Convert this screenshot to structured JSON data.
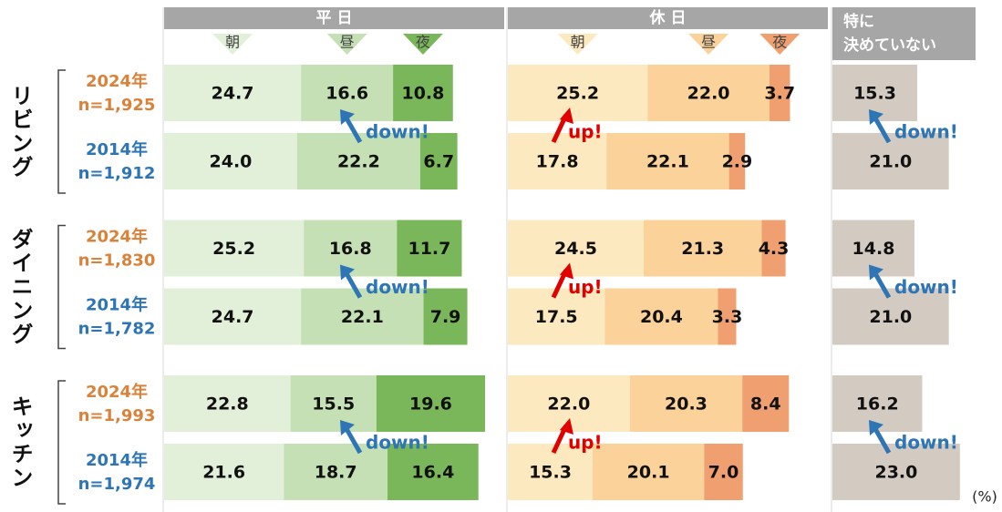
{
  "chart_data": {
    "type": "stacked_bar_panels",
    "unit": "(%)",
    "rooms": [
      {
        "name": "リビング",
        "rows": [
          {
            "year": "2024年",
            "n": "n=1,925"
          },
          {
            "year": "2014年",
            "n": "n=1,912"
          }
        ]
      },
      {
        "name": "ダイニング",
        "rows": [
          {
            "year": "2024年",
            "n": "n=1,830"
          },
          {
            "year": "2014年",
            "n": "n=1,782"
          }
        ]
      },
      {
        "name": "キッチン",
        "rows": [
          {
            "year": "2024年",
            "n": "n=1,993"
          },
          {
            "year": "2014年",
            "n": "n=1,974"
          }
        ]
      }
    ],
    "year_colors": [
      "#d9823b",
      "#2e75b6"
    ],
    "panels": [
      {
        "title_lines": [
          "平 日"
        ],
        "annotations": [
          "down!",
          "down!",
          "down!"
        ],
        "annotation_color": "#2e75b6",
        "series": [
          {
            "name": "朝",
            "color": "#e2efd9",
            "values": [
              24.7,
              24.0,
              25.2,
              24.7,
              22.8,
              21.6
            ],
            "value_labels": [
              "24.7",
              "24.0",
              "25.2",
              "24.7",
              "22.8",
              "21.6"
            ]
          },
          {
            "name": "昼",
            "color": "#c5e0b4",
            "values": [
              16.6,
              22.2,
              16.8,
              22.1,
              15.5,
              18.7
            ],
            "value_labels": [
              "16.6",
              "22.2",
              "16.8",
              "22.1",
              "15.5",
              "18.7"
            ]
          },
          {
            "name": "夜",
            "color": "#7ab65a",
            "values": [
              10.8,
              6.7,
              11.7,
              7.9,
              19.6,
              16.4
            ],
            "value_labels": [
              "10.8",
              "6.7",
              "11.7",
              "7.9",
              "19.6",
              "16.4"
            ]
          }
        ]
      },
      {
        "title_lines": [
          "休 日"
        ],
        "annotations": [
          "up!",
          "up!",
          "up!"
        ],
        "annotation_color": "#e00000",
        "series": [
          {
            "name": "朝",
            "color": "#fde9c0",
            "values": [
              25.2,
              17.8,
              24.5,
              17.5,
              22.0,
              15.3
            ],
            "value_labels": [
              "25.2",
              "17.8",
              "24.5",
              "17.5",
              "22.0",
              "15.3"
            ]
          },
          {
            "name": "昼",
            "color": "#fbd39a",
            "values": [
              22.0,
              22.1,
              21.3,
              20.4,
              20.3,
              20.1
            ],
            "value_labels": [
              "22.0",
              "22.1",
              "21.3",
              "20.4",
              "20.3",
              "20.1"
            ]
          },
          {
            "name": "夜",
            "color": "#f0a070",
            "values": [
              3.7,
              2.9,
              4.3,
              3.3,
              8.4,
              7.0
            ],
            "value_labels": [
              "3.7",
              "2.9",
              "4.3",
              "3.3",
              "8.4",
              "7.0"
            ]
          }
        ]
      },
      {
        "title_lines": [
          "特に",
          "決めていない"
        ],
        "annotations": [
          "down!",
          "down!",
          "down!"
        ],
        "annotation_color": "#2e75b6",
        "series": [
          {
            "color": "#d3cbc1",
            "values": [
              15.3,
              21.0,
              14.8,
              21.0,
              16.2,
              23.0
            ],
            "value_labels": [
              "15.3",
              "21.0",
              "14.8",
              "21.0",
              "16.2",
              "23.0"
            ]
          }
        ]
      }
    ]
  }
}
